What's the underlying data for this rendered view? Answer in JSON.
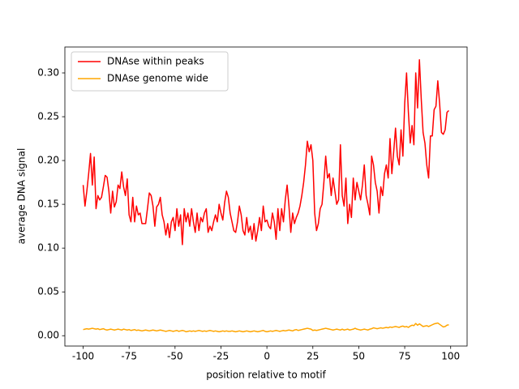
{
  "chart_data": {
    "type": "line",
    "xlabel": "position relative to motif",
    "ylabel": "average DNA signal",
    "x": [
      -100,
      -99,
      -98,
      -97,
      -96,
      -95,
      -94,
      -93,
      -92,
      -91,
      -90,
      -89,
      -88,
      -87,
      -86,
      -85,
      -84,
      -83,
      -82,
      -81,
      -80,
      -79,
      -78,
      -77,
      -76,
      -75,
      -74,
      -73,
      -72,
      -71,
      -70,
      -69,
      -68,
      -67,
      -66,
      -65,
      -64,
      -63,
      -62,
      -61,
      -60,
      -59,
      -58,
      -57,
      -56,
      -55,
      -54,
      -53,
      -52,
      -51,
      -50,
      -49,
      -48,
      -47,
      -46,
      -45,
      -44,
      -43,
      -42,
      -41,
      -40,
      -39,
      -38,
      -37,
      -36,
      -35,
      -34,
      -33,
      -32,
      -31,
      -30,
      -29,
      -28,
      -27,
      -26,
      -25,
      -24,
      -23,
      -22,
      -21,
      -20,
      -19,
      -18,
      -17,
      -16,
      -15,
      -14,
      -13,
      -12,
      -11,
      -10,
      -9,
      -8,
      -7,
      -6,
      -5,
      -4,
      -3,
      -2,
      -1,
      0,
      1,
      2,
      3,
      4,
      5,
      6,
      7,
      8,
      9,
      10,
      11,
      12,
      13,
      14,
      15,
      16,
      17,
      18,
      19,
      20,
      21,
      22,
      23,
      24,
      25,
      26,
      27,
      28,
      29,
      30,
      31,
      32,
      33,
      34,
      35,
      36,
      37,
      38,
      39,
      40,
      41,
      42,
      43,
      44,
      45,
      46,
      47,
      48,
      49,
      50,
      51,
      52,
      53,
      54,
      55,
      56,
      57,
      58,
      59,
      60,
      61,
      62,
      63,
      64,
      65,
      66,
      67,
      68,
      69,
      70,
      71,
      72,
      73,
      74,
      75,
      76,
      77,
      78,
      79,
      80,
      81,
      82,
      83,
      84,
      85,
      86,
      87,
      88,
      89,
      90,
      91,
      92,
      93,
      94,
      95,
      96,
      97,
      98,
      99
    ],
    "series": [
      {
        "name": "DNAse within peaks",
        "color": "#ff0000",
        "values": [
          0.172,
          0.148,
          0.165,
          0.185,
          0.208,
          0.172,
          0.204,
          0.145,
          0.16,
          0.155,
          0.158,
          0.17,
          0.183,
          0.181,
          0.165,
          0.14,
          0.165,
          0.147,
          0.153,
          0.172,
          0.168,
          0.187,
          0.17,
          0.16,
          0.179,
          0.138,
          0.13,
          0.158,
          0.13,
          0.148,
          0.138,
          0.14,
          0.128,
          0.128,
          0.128,
          0.145,
          0.163,
          0.16,
          0.148,
          0.125,
          0.147,
          0.15,
          0.158,
          0.138,
          0.13,
          0.115,
          0.128,
          0.112,
          0.13,
          0.135,
          0.12,
          0.145,
          0.125,
          0.138,
          0.104,
          0.145,
          0.13,
          0.14,
          0.125,
          0.145,
          0.13,
          0.118,
          0.14,
          0.12,
          0.135,
          0.13,
          0.14,
          0.145,
          0.118,
          0.125,
          0.12,
          0.13,
          0.138,
          0.13,
          0.15,
          0.14,
          0.132,
          0.152,
          0.165,
          0.158,
          0.14,
          0.13,
          0.12,
          0.118,
          0.13,
          0.148,
          0.138,
          0.12,
          0.115,
          0.135,
          0.118,
          0.125,
          0.11,
          0.128,
          0.108,
          0.12,
          0.135,
          0.12,
          0.148,
          0.13,
          0.132,
          0.125,
          0.122,
          0.14,
          0.13,
          0.11,
          0.145,
          0.12,
          0.145,
          0.13,
          0.155,
          0.172,
          0.148,
          0.118,
          0.14,
          0.128,
          0.135,
          0.14,
          0.148,
          0.16,
          0.175,
          0.195,
          0.222,
          0.21,
          0.218,
          0.2,
          0.14,
          0.12,
          0.128,
          0.145,
          0.15,
          0.175,
          0.205,
          0.18,
          0.185,
          0.16,
          0.18,
          0.165,
          0.15,
          0.155,
          0.218,
          0.16,
          0.148,
          0.18,
          0.128,
          0.15,
          0.135,
          0.18,
          0.155,
          0.175,
          0.165,
          0.155,
          0.172,
          0.195,
          0.16,
          0.15,
          0.138,
          0.205,
          0.195,
          0.175,
          0.165,
          0.14,
          0.17,
          0.16,
          0.185,
          0.195,
          0.18,
          0.225,
          0.185,
          0.21,
          0.237,
          0.205,
          0.195,
          0.235,
          0.205,
          0.265,
          0.3,
          0.255,
          0.22,
          0.24,
          0.218,
          0.3,
          0.26,
          0.315,
          0.27,
          0.232,
          0.22,
          0.195,
          0.18,
          0.228,
          0.228,
          0.258,
          0.262,
          0.291,
          0.265,
          0.232,
          0.23,
          0.235,
          0.255,
          0.257
        ]
      },
      {
        "name": "DNAse genome wide",
        "color": "#ffa500",
        "values": [
          0.007,
          0.0075,
          0.008,
          0.0075,
          0.008,
          0.0085,
          0.008,
          0.0075,
          0.008,
          0.007,
          0.0075,
          0.008,
          0.007,
          0.0065,
          0.007,
          0.0075,
          0.007,
          0.0065,
          0.007,
          0.0075,
          0.007,
          0.0065,
          0.0075,
          0.007,
          0.0065,
          0.007,
          0.006,
          0.0065,
          0.007,
          0.006,
          0.0065,
          0.006,
          0.0055,
          0.006,
          0.0065,
          0.006,
          0.0055,
          0.006,
          0.0065,
          0.006,
          0.0055,
          0.006,
          0.0065,
          0.006,
          0.0055,
          0.005,
          0.0055,
          0.006,
          0.0055,
          0.005,
          0.0055,
          0.006,
          0.005,
          0.0055,
          0.006,
          0.0055,
          0.0045,
          0.005,
          0.0055,
          0.005,
          0.0055,
          0.005,
          0.0055,
          0.006,
          0.0055,
          0.005,
          0.0055,
          0.005,
          0.0055,
          0.006,
          0.0055,
          0.005,
          0.0055,
          0.005,
          0.0045,
          0.005,
          0.0055,
          0.005,
          0.0055,
          0.005,
          0.005,
          0.0055,
          0.005,
          0.0045,
          0.005,
          0.0055,
          0.005,
          0.0045,
          0.005,
          0.0055,
          0.005,
          0.0045,
          0.005,
          0.0055,
          0.005,
          0.0045,
          0.005,
          0.0055,
          0.006,
          0.005,
          0.0045,
          0.005,
          0.0055,
          0.005,
          0.0055,
          0.006,
          0.0055,
          0.005,
          0.0055,
          0.006,
          0.0055,
          0.006,
          0.0065,
          0.006,
          0.0055,
          0.0065,
          0.007,
          0.006,
          0.0065,
          0.007,
          0.0075,
          0.008,
          0.0085,
          0.008,
          0.0075,
          0.006,
          0.0065,
          0.006,
          0.0065,
          0.007,
          0.0075,
          0.008,
          0.0085,
          0.008,
          0.0075,
          0.007,
          0.0065,
          0.007,
          0.0075,
          0.007,
          0.0065,
          0.0075,
          0.0065,
          0.007,
          0.0075,
          0.0065,
          0.007,
          0.0075,
          0.0085,
          0.0075,
          0.007,
          0.0065,
          0.007,
          0.0075,
          0.007,
          0.0065,
          0.0075,
          0.008,
          0.009,
          0.0085,
          0.008,
          0.0085,
          0.009,
          0.0085,
          0.009,
          0.0095,
          0.009,
          0.01,
          0.0095,
          0.01,
          0.0105,
          0.01,
          0.0095,
          0.0105,
          0.011,
          0.01,
          0.0105,
          0.0095,
          0.011,
          0.012,
          0.0115,
          0.014,
          0.012,
          0.0135,
          0.012,
          0.0105,
          0.011,
          0.0115,
          0.0105,
          0.0115,
          0.0125,
          0.0135,
          0.014,
          0.0145,
          0.013,
          0.0115,
          0.01,
          0.0105,
          0.012,
          0.0125
        ]
      }
    ],
    "xlim": [
      -109.95,
      108.95
    ],
    "xticks": [
      -100,
      -75,
      -50,
      -25,
      0,
      25,
      50,
      75,
      100
    ],
    "ylim": [
      -0.0118,
      0.3296
    ],
    "yticks": [
      {
        "value": 0,
        "label": "0.00"
      },
      {
        "value": 0.05,
        "label": "0.05"
      },
      {
        "value": 0.1,
        "label": "0.10"
      },
      {
        "value": 0.15,
        "label": "0.15"
      },
      {
        "value": 0.2,
        "label": "0.20"
      },
      {
        "value": 0.25,
        "label": "0.25"
      },
      {
        "value": 0.3,
        "label": "0.30"
      }
    ],
    "legend": "upper left"
  }
}
